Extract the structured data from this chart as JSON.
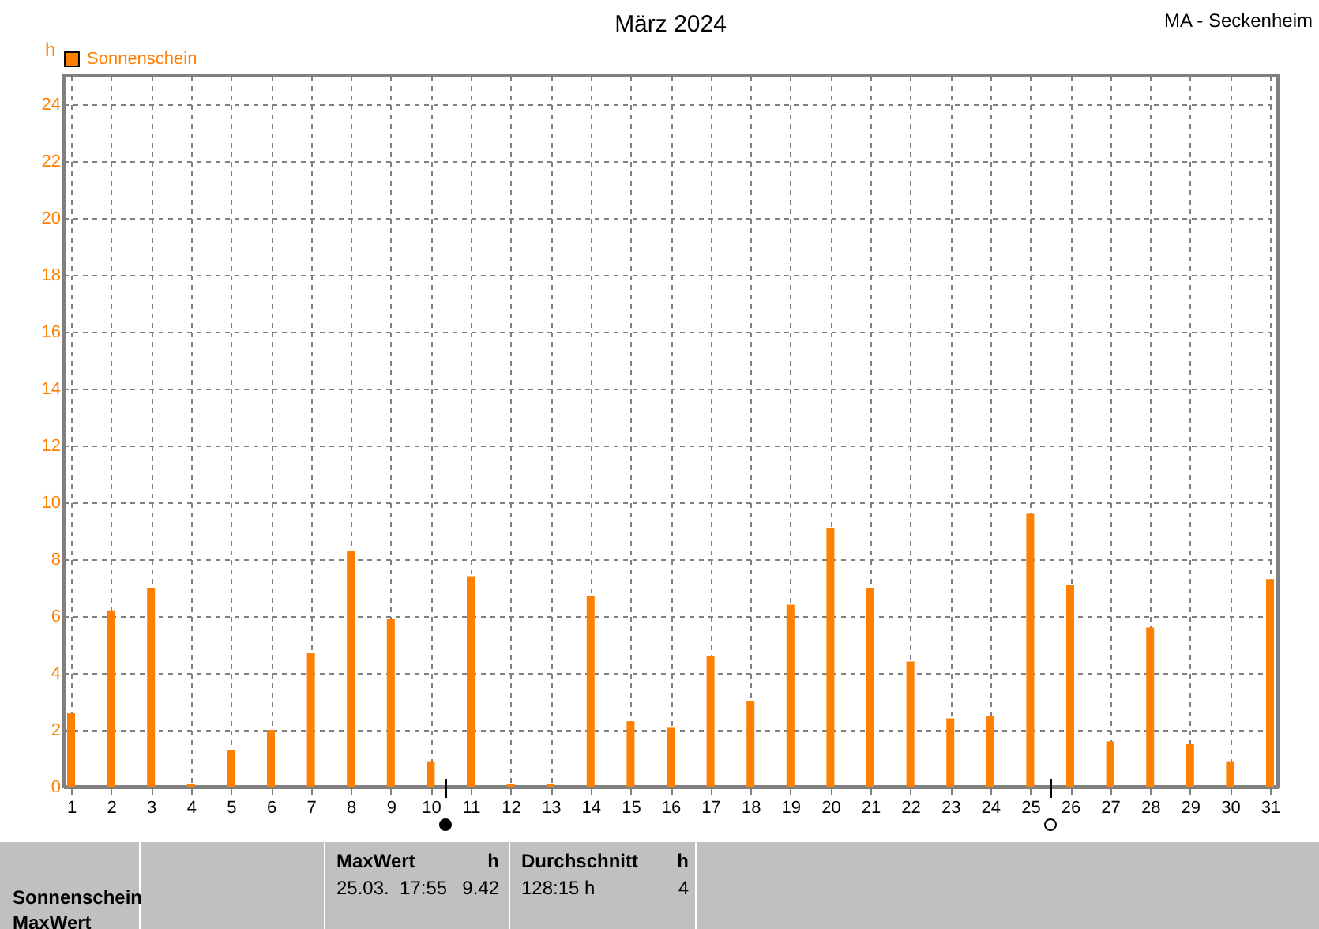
{
  "chart_data": {
    "type": "bar",
    "title": "März 2024",
    "ylabel": "h",
    "x": [
      1,
      2,
      3,
      4,
      5,
      6,
      7,
      8,
      9,
      10,
      11,
      12,
      13,
      14,
      15,
      16,
      17,
      18,
      19,
      20,
      21,
      22,
      23,
      24,
      25,
      26,
      27,
      28,
      29,
      30,
      31
    ],
    "series": [
      {
        "name": "Sonnenschein",
        "color": "#ff8000",
        "values": [
          2.6,
          6.2,
          7.0,
          0.1,
          1.3,
          2.0,
          4.7,
          8.3,
          5.9,
          0.9,
          7.4,
          0.1,
          0.1,
          6.7,
          2.3,
          2.1,
          4.6,
          3.0,
          6.4,
          9.1,
          7.0,
          4.4,
          2.4,
          2.5,
          9.6,
          7.1,
          1.6,
          5.6,
          1.5,
          0.9,
          7.3
        ]
      }
    ],
    "xlim": [
      1,
      31
    ],
    "xticks": [
      1,
      2,
      3,
      4,
      5,
      6,
      7,
      8,
      9,
      10,
      11,
      12,
      13,
      14,
      15,
      16,
      17,
      18,
      19,
      20,
      21,
      22,
      23,
      24,
      25,
      26,
      27,
      28,
      29,
      30,
      31
    ],
    "ylim": [
      0,
      25
    ],
    "yticks": [
      0,
      2,
      4,
      6,
      8,
      10,
      12,
      14,
      16,
      18,
      20,
      22,
      24
    ],
    "grid": true,
    "legend": "top left",
    "annotations": [
      "MA - Seckenheim",
      "Sonnenschein",
      "MaxWert",
      "MaxWert",
      "h",
      "25.03.  17:55",
      "9.42",
      "Durchschnitt",
      "h",
      "128:15 h",
      "4"
    ]
  }
}
